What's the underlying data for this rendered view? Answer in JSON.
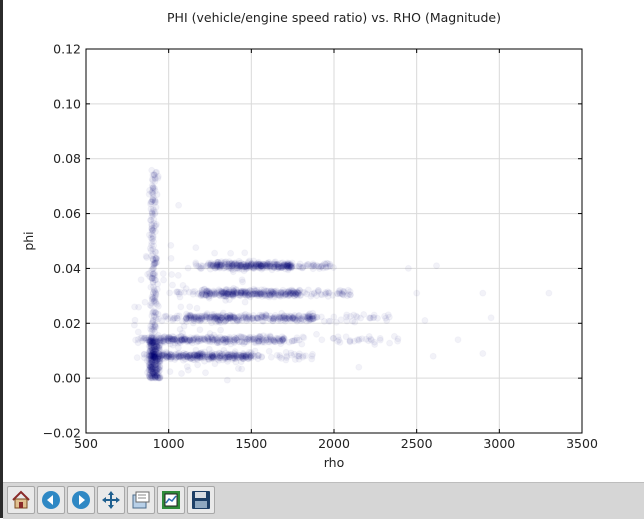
{
  "window": {
    "toolbar": {
      "buttons": [
        {
          "icon": "home-icon"
        },
        {
          "icon": "back-arrow-icon"
        },
        {
          "icon": "forward-arrow-icon"
        },
        {
          "icon": "pan-move-icon"
        },
        {
          "icon": "zoom-rectangle-icon"
        },
        {
          "icon": "configure-subplots-icon"
        },
        {
          "icon": "save-floppy-icon"
        }
      ]
    }
  },
  "chart_data": {
    "type": "scatter",
    "title": "PHI (vehicle/engine speed ratio) vs. RHO (Magnitude)",
    "xlabel": "rho",
    "ylabel": "phi",
    "xlim": [
      500,
      3500
    ],
    "ylim": [
      -0.02,
      0.12
    ],
    "xticks": [
      500,
      1000,
      1500,
      2000,
      2500,
      3000,
      3500
    ],
    "xtick_labels": [
      "500",
      "1000",
      "1500",
      "2000",
      "2500",
      "3000",
      "3500"
    ],
    "yticks": [
      -0.02,
      0.0,
      0.02,
      0.04,
      0.06,
      0.08,
      0.1,
      0.12
    ],
    "ytick_labels": [
      "−0.02",
      "0.00",
      "0.02",
      "0.04",
      "0.06",
      "0.08",
      "0.10",
      "0.12"
    ],
    "grid": true,
    "marker_color": "#00007f",
    "marker_alpha": 0.05,
    "clusters": [
      {
        "shape": "vertical_band",
        "x": 910,
        "y_range": [
          0.0,
          0.076
        ]
      },
      {
        "shape": "horizontal_band",
        "y": 0.041,
        "x_range": [
          1150,
          2000
        ],
        "dense_x_range": [
          1250,
          1750
        ]
      },
      {
        "shape": "horizontal_band",
        "y": 0.031,
        "x_range": [
          1000,
          2100
        ],
        "dense_x_range": [
          1200,
          1800
        ]
      },
      {
        "shape": "horizontal_band",
        "y": 0.022,
        "x_range": [
          950,
          2350
        ],
        "dense_x_range": [
          1100,
          1900
        ]
      },
      {
        "shape": "horizontal_band",
        "y": 0.014,
        "x_range": [
          800,
          2400
        ],
        "dense_x_range": [
          850,
          1700
        ]
      },
      {
        "shape": "horizontal_band",
        "y": 0.008,
        "x_range": [
          850,
          1900
        ],
        "dense_x_range": [
          900,
          1500
        ]
      },
      {
        "shape": "dense_blob",
        "x_range": [
          880,
          950
        ],
        "y_range": [
          0.0,
          0.014
        ]
      }
    ],
    "outlier_points": [
      {
        "x": 3300,
        "y": 0.031
      },
      {
        "x": 2900,
        "y": 0.031
      },
      {
        "x": 2950,
        "y": 0.022
      },
      {
        "x": 2750,
        "y": 0.014
      },
      {
        "x": 2900,
        "y": 0.009
      },
      {
        "x": 2620,
        "y": 0.041
      },
      {
        "x": 2450,
        "y": 0.04
      },
      {
        "x": 2550,
        "y": 0.021
      },
      {
        "x": 2500,
        "y": 0.031
      },
      {
        "x": 2600,
        "y": 0.008
      },
      {
        "x": 2150,
        "y": 0.004
      },
      {
        "x": 1060,
        "y": 0.063
      }
    ]
  }
}
